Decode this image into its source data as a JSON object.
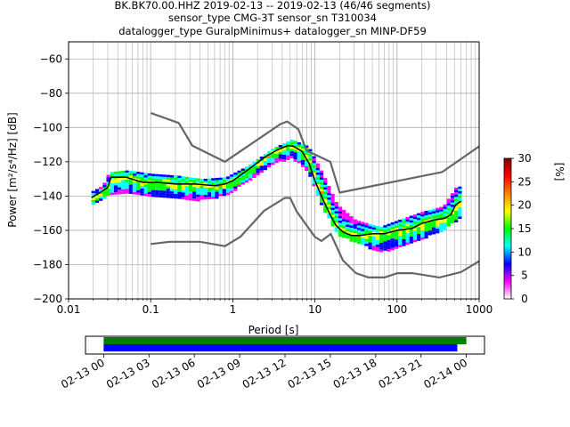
{
  "chart_data": [
    {
      "type": "heatmap",
      "title_lines": [
        "BK.BK70.00.HHZ   2019-02-13 -- 2019-02-13  (46/46 segments)",
        "sensor_type CMG-3T sensor_sn T310034",
        "datalogger_type GuralpMinimus+ datalogger_sn MINP-DF59"
      ],
      "xlabel": "Period [s]",
      "ylabel": "Power [m²/s⁴/Hz] [dB]",
      "xscale": "log",
      "xlim": [
        0.01,
        1000
      ],
      "ylim": [
        -200,
        -50
      ],
      "x_ticks": [
        0.01,
        0.1,
        1,
        10,
        100,
        1000
      ],
      "x_tick_labels": [
        "0.01",
        "0.1",
        "1",
        "10",
        "100",
        "1000"
      ],
      "y_ticks": [
        -200,
        -180,
        -160,
        -140,
        -120,
        -100,
        -80,
        -60
      ],
      "y_tick_labels": [
        "−200",
        "−180",
        "−160",
        "−140",
        "−120",
        "−100",
        "−80",
        "−60"
      ],
      "grid": true,
      "colorbar": {
        "label": "[%]",
        "range": [
          0,
          30
        ],
        "ticks": [
          0,
          5,
          10,
          15,
          20,
          25,
          30
        ],
        "tick_labels": [
          "0",
          "5",
          "10",
          "15",
          "20",
          "25",
          "30"
        ],
        "colors": [
          "#ffffff",
          "#ff00ff",
          "#0000ff",
          "#00ffff",
          "#00ff00",
          "#ffff00",
          "#ff8000",
          "#ff0000",
          "#800000"
        ]
      },
      "series": [
        {
          "role": "high-noise-model",
          "color": "#666666",
          "x": [
            0.1,
            0.22,
            0.32,
            0.8,
            3.8,
            4.6,
            6.3,
            7.9,
            15.4,
            20,
            354.8,
            1000
          ],
          "y": [
            -91.5,
            -97.4,
            -110.5,
            -120,
            -98,
            -96.5,
            -101,
            -113.5,
            -120,
            -138,
            -126,
            -111
          ]
        },
        {
          "role": "low-noise-model",
          "color": "#666666",
          "x": [
            0.1,
            0.17,
            0.4,
            0.8,
            1.24,
            2.4,
            4.3,
            5,
            6,
            10,
            12,
            15.6,
            21.9,
            31.6,
            45,
            70,
            101,
            154,
            328,
            600,
            1000
          ],
          "y": [
            -168,
            -166.7,
            -166.7,
            -169.2,
            -163.7,
            -148.6,
            -141.1,
            -141.1,
            -149,
            -163.8,
            -166.2,
            -162.1,
            -177.5,
            -185,
            -187.5,
            -187.5,
            -185,
            -185,
            -187.5,
            -184.4,
            -178
          ]
        },
        {
          "role": "median",
          "color": "#000000",
          "x": [
            0.019,
            0.022,
            0.026,
            0.03,
            0.033,
            0.05,
            0.08,
            0.12,
            0.2,
            0.35,
            0.6,
            0.8,
            1,
            1.5,
            2.5,
            3.5,
            4.7,
            5.5,
            7,
            8.5,
            10,
            12,
            15,
            18,
            22,
            28,
            35,
            50,
            70,
            100,
            150,
            200,
            280,
            380,
            450,
            520,
            600
          ],
          "y": [
            -141,
            -139,
            -137,
            -135,
            -129,
            -129,
            -132,
            -132,
            -133,
            -133,
            -134,
            -133,
            -131,
            -125,
            -117,
            -113,
            -110.5,
            -111,
            -114,
            -121,
            -131,
            -140,
            -150,
            -157,
            -161,
            -163,
            -163,
            -162,
            -162,
            -160,
            -159,
            -156,
            -154,
            -153,
            -151,
            -145,
            -143
          ]
        },
        {
          "role": "percentile-spread",
          "heatmap_band": [
            {
              "x": 0.019,
              "ymin": -144,
              "ymax": -137
            },
            {
              "x": 0.025,
              "ymin": -141,
              "ymax": -134
            },
            {
              "x": 0.03,
              "ymin": -139,
              "ymax": -126
            },
            {
              "x": 0.05,
              "ymin": -138,
              "ymax": -125
            },
            {
              "x": 0.1,
              "ymin": -140,
              "ymax": -127
            },
            {
              "x": 0.2,
              "ymin": -141,
              "ymax": -128
            },
            {
              "x": 0.4,
              "ymin": -142,
              "ymax": -130
            },
            {
              "x": 0.8,
              "ymin": -139,
              "ymax": -129
            },
            {
              "x": 1.5,
              "ymin": -131,
              "ymax": -122
            },
            {
              "x": 3,
              "ymin": -121,
              "ymax": -112
            },
            {
              "x": 5,
              "ymin": -117,
              "ymax": -107
            },
            {
              "x": 8,
              "ymin": -126,
              "ymax": -111
            },
            {
              "x": 12,
              "ymin": -147,
              "ymax": -127
            },
            {
              "x": 18,
              "ymin": -162,
              "ymax": -145
            },
            {
              "x": 30,
              "ymin": -167,
              "ymax": -154
            },
            {
              "x": 60,
              "ymin": -172,
              "ymax": -158
            },
            {
              "x": 100,
              "ymin": -170,
              "ymax": -154
            },
            {
              "x": 200,
              "ymin": -164,
              "ymax": -149
            },
            {
              "x": 350,
              "ymin": -160,
              "ymax": -146
            },
            {
              "x": 500,
              "ymin": -154,
              "ymax": -135
            },
            {
              "x": 600,
              "ymin": -152,
              "ymax": -134
            }
          ]
        }
      ]
    },
    {
      "type": "timeline",
      "x_tick_labels": [
        "02-13 00",
        "02-13 03",
        "02-13 06",
        "02-13 09",
        "02-13 12",
        "02-13 15",
        "02-13 18",
        "02-13 21",
        "02-14 00"
      ],
      "x_tick_hours": [
        0,
        3,
        6,
        9,
        12,
        15,
        18,
        21,
        24
      ],
      "xlim_hours": [
        -1.2,
        25.2
      ],
      "bars": [
        {
          "color": "#008000",
          "start_hour": 0,
          "end_hour": 24.0
        },
        {
          "color": "#0000ff",
          "start_hour": 0,
          "end_hour": 23.4
        }
      ]
    }
  ]
}
